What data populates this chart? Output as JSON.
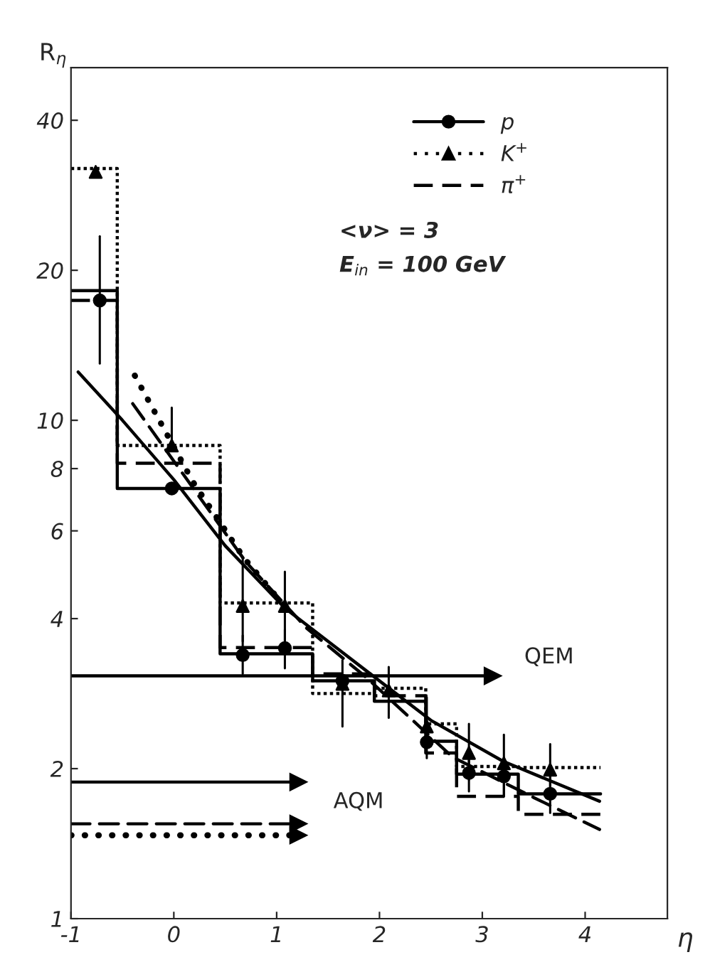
{
  "chart_data": {
    "type": "line",
    "xlabel": "η",
    "ylabel": "R$_{η}$",
    "log": "y",
    "xlim": [
      -1,
      4.8
    ],
    "ylim": [
      1,
      51
    ],
    "xticks": [
      -1,
      0,
      1,
      2,
      3,
      4
    ],
    "yticks": [
      1,
      2,
      4,
      6,
      8,
      10,
      20,
      40
    ],
    "grid": false,
    "legend": "top right",
    "series": [
      {
        "type": "step",
        "color": "#000000",
        "line_style": "solid",
        "x": [
          -1,
          -0.55,
          0.45,
          1.35,
          1.95,
          2.45,
          2.75,
          3.35,
          4.15
        ],
        "values": [
          18.2,
          7.3,
          3.4,
          3.0,
          2.73,
          2.27,
          1.95,
          1.78,
          1.78
        ]
      },
      {
        "type": "step",
        "color": "#000000",
        "line_style": "dotted",
        "x": [
          -1,
          -0.55,
          0.45,
          1.35,
          1.95,
          2.45,
          2.75,
          3.35,
          4.15
        ],
        "values": [
          32,
          8.9,
          4.3,
          2.83,
          2.9,
          2.46,
          2.02,
          2.01,
          2.01
        ]
      },
      {
        "type": "step",
        "color": "#000000",
        "line_style": "dashed",
        "x": [
          -1,
          -0.55,
          0.45,
          1.35,
          1.95,
          2.45,
          2.75,
          3.35,
          4.15
        ],
        "values": [
          17.4,
          8.2,
          3.5,
          3.1,
          2.8,
          2.15,
          1.76,
          1.62,
          1.62
        ]
      },
      {
        "type": "scatter",
        "name": "p",
        "color": "#000000",
        "marker": "circle",
        "line_style": "solid",
        "x": [
          -0.72,
          -0.02,
          0.67,
          1.08,
          1.64,
          2.46,
          2.87,
          3.21,
          3.66
        ],
        "values": [
          17.4,
          7.3,
          3.38,
          3.49,
          3.0,
          2.26,
          1.96,
          1.93,
          1.78
        ],
        "errors": [
          [
            13.0,
            23.4
          ],
          null,
          [
            3.1,
            3.7
          ],
          [
            3.18,
            3.8
          ],
          null,
          [
            2.1,
            2.45
          ],
          [
            1.8,
            2.1
          ],
          [
            1.76,
            2.1
          ],
          [
            1.63,
            1.95
          ]
        ]
      },
      {
        "type": "scatter",
        "name": "K$^{+}$",
        "color": "#000000",
        "marker": "triangle",
        "line_style": "dotted",
        "x": [
          -0.76,
          -0.02,
          0.67,
          1.08,
          1.64,
          2.09,
          2.46,
          2.87,
          3.21,
          3.66
        ],
        "values": [
          31.5,
          8.9,
          4.24,
          4.24,
          2.96,
          2.87,
          2.43,
          2.15,
          2.05,
          1.99
        ],
        "errors": [
          null,
          [
            8.9,
            10.6
          ],
          [
            3.6,
            5.3
          ],
          [
            3.6,
            4.97
          ],
          [
            2.43,
            3.3
          ],
          [
            2.53,
            3.2
          ],
          [
            2.2,
            2.78
          ],
          [
            1.9,
            2.46
          ],
          [
            1.76,
            2.34
          ],
          [
            1.75,
            2.24
          ]
        ]
      },
      {
        "name": "π$^{+}$",
        "color": "#000000",
        "line_style": "dashed",
        "x": [
          -0.4,
          0.19,
          0.7,
          1.29,
          1.87,
          2.71,
          3.5,
          4.14
        ],
        "values": [
          10.8,
          7.3,
          5.2,
          3.83,
          3.05,
          2.11,
          1.75,
          1.51
        ]
      },
      {
        "color": "#000000",
        "line_style": "solid",
        "x": [
          -0.93,
          -0.5,
          0.0,
          0.5,
          1.08,
          1.5,
          1.91,
          2.5,
          3.2,
          4.14
        ],
        "values": [
          12.5,
          10,
          7.6,
          5.6,
          4.2,
          3.6,
          3.1,
          2.5,
          2.07,
          1.72
        ]
      },
      {
        "color": "#000000",
        "line_style": "dotted",
        "x": [
          -0.38,
          0.19,
          0.68,
          1.05
        ],
        "values": [
          12.3,
          7.5,
          5.3,
          4.3
        ]
      },
      {
        "type": "line",
        "color": "#000000",
        "line_style": "solid",
        "x": [
          -1,
          3.1
        ],
        "values": [
          3.07,
          3.07
        ]
      },
      {
        "type": "line",
        "color": "#000000",
        "line_style": "solid",
        "x": [
          -1,
          1.21
        ],
        "values": [
          1.88,
          1.88
        ]
      },
      {
        "type": "line",
        "color": "#000000",
        "line_style": "dashed",
        "x": [
          -1,
          1.21
        ],
        "values": [
          1.55,
          1.55
        ]
      },
      {
        "type": "line",
        "color": "#000000",
        "line_style": "dotted",
        "x": [
          -1,
          1.21
        ],
        "values": [
          1.47,
          1.47
        ]
      }
    ],
    "annotations": [
      "<ν> = 3",
      "E$_{in}$ = 100 GeV",
      "QEM",
      "AQM"
    ]
  }
}
